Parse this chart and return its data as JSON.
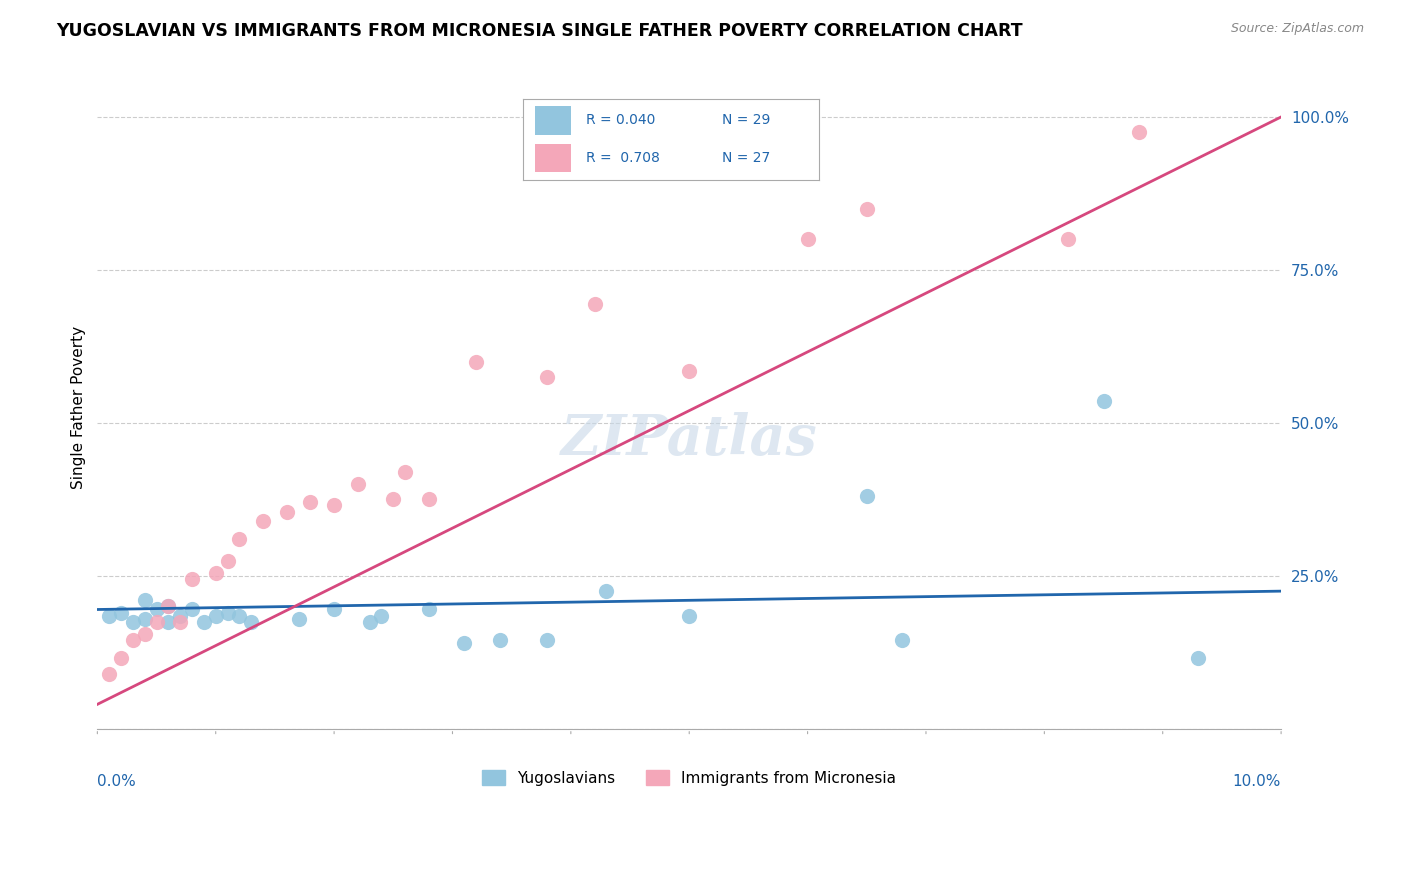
{
  "title": "YUGOSLAVIAN VS IMMIGRANTS FROM MICRONESIA SINGLE FATHER POVERTY CORRELATION CHART",
  "source": "Source: ZipAtlas.com",
  "ylabel": "Single Father Poverty",
  "legend_label1": "Yugoslavians",
  "legend_label2": "Immigrants from Micronesia",
  "r1": 0.04,
  "n1": 29,
  "r2": 0.708,
  "n2": 27,
  "color_blue": "#92c5de",
  "color_pink": "#f4a7b9",
  "line_blue": "#2166ac",
  "line_pink": "#d6487e",
  "watermark": "ZIPatlas",
  "blue_x": [
    0.001,
    0.002,
    0.003,
    0.004,
    0.004,
    0.005,
    0.006,
    0.006,
    0.007,
    0.008,
    0.009,
    0.01,
    0.011,
    0.012,
    0.013,
    0.017,
    0.02,
    0.023,
    0.024,
    0.028,
    0.031,
    0.034,
    0.038,
    0.043,
    0.05,
    0.065,
    0.068,
    0.085,
    0.093
  ],
  "blue_y": [
    0.185,
    0.19,
    0.175,
    0.21,
    0.18,
    0.195,
    0.175,
    0.2,
    0.185,
    0.195,
    0.175,
    0.185,
    0.19,
    0.185,
    0.175,
    0.18,
    0.195,
    0.175,
    0.185,
    0.195,
    0.14,
    0.145,
    0.145,
    0.225,
    0.185,
    0.38,
    0.145,
    0.535,
    0.115
  ],
  "pink_x": [
    0.001,
    0.002,
    0.003,
    0.004,
    0.005,
    0.006,
    0.007,
    0.008,
    0.01,
    0.011,
    0.012,
    0.014,
    0.016,
    0.018,
    0.02,
    0.022,
    0.025,
    0.026,
    0.028,
    0.032,
    0.038,
    0.042,
    0.05,
    0.06,
    0.065,
    0.082,
    0.088
  ],
  "pink_y": [
    0.09,
    0.115,
    0.145,
    0.155,
    0.175,
    0.2,
    0.175,
    0.245,
    0.255,
    0.275,
    0.31,
    0.34,
    0.355,
    0.37,
    0.365,
    0.4,
    0.375,
    0.42,
    0.375,
    0.6,
    0.575,
    0.695,
    0.585,
    0.8,
    0.85,
    0.8,
    0.975
  ],
  "xmin": 0.0,
  "xmax": 0.1,
  "ymin": 0.0,
  "ymax": 1.05,
  "yticks": [
    0.0,
    0.25,
    0.5,
    0.75,
    1.0
  ],
  "ytick_labels_right": [
    "",
    "25.0%",
    "50.0%",
    "75.0%",
    "100.0%"
  ],
  "xtick_count": 10
}
